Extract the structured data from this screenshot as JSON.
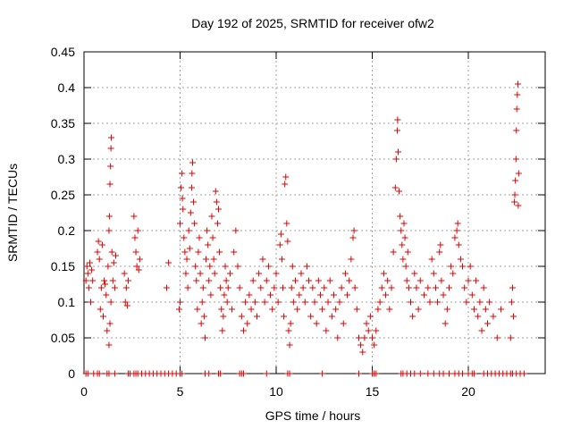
{
  "chart_data": {
    "type": "scatter",
    "title": "Day 192 of 2025, SRMTID for receiver ofw2",
    "xlabel": "GPS time / hours",
    "ylabel": "SRMTID / TECUs",
    "xlim": [
      0,
      24
    ],
    "ylim": [
      0,
      0.45
    ],
    "grid": true,
    "marker": "+",
    "color": "#e00000",
    "x_ticks": [
      "0",
      "5",
      "10",
      "15",
      "20"
    ],
    "y_ticks": [
      "0",
      "0.05",
      "0.1",
      "0.15",
      "0.2",
      "0.25",
      "0.3",
      "0.35",
      "0.4",
      "0.45"
    ],
    "series": [
      {
        "name": "SRMTID",
        "points": [
          [
            0.1,
            0.13
          ],
          [
            0.15,
            0.15
          ],
          [
            0.2,
            0.14
          ],
          [
            0.25,
            0.12
          ],
          [
            0.3,
            0.155
          ],
          [
            0.35,
            0.1
          ],
          [
            0.4,
            0.145
          ],
          [
            0.45,
            0.13
          ],
          [
            0.7,
            0.17
          ],
          [
            0.75,
            0.185
          ],
          [
            0.8,
            0.16
          ],
          [
            0.85,
            0.09
          ],
          [
            0.9,
            0.12
          ],
          [
            0.95,
            0.18
          ],
          [
            1.0,
            0.08
          ],
          [
            1.05,
            0.13
          ],
          [
            1.1,
            0.125
          ],
          [
            1.15,
            0.11
          ],
          [
            1.2,
            0.06
          ],
          [
            1.25,
            0.15
          ],
          [
            1.3,
            0.2
          ],
          [
            1.32,
            0.22
          ],
          [
            1.35,
            0.265
          ],
          [
            1.38,
            0.29
          ],
          [
            1.4,
            0.315
          ],
          [
            1.42,
            0.33
          ],
          [
            1.45,
            0.17
          ],
          [
            1.5,
            0.13
          ],
          [
            1.55,
            0.155
          ],
          [
            1.6,
            0.12
          ],
          [
            1.65,
            0.165
          ],
          [
            1.3,
            0.04
          ],
          [
            1.35,
            0.07
          ],
          [
            1.4,
            0.1
          ],
          [
            2.1,
            0.14
          ],
          [
            2.15,
            0.1
          ],
          [
            2.2,
            0.12
          ],
          [
            2.25,
            0.095
          ],
          [
            2.3,
            0.13
          ],
          [
            2.6,
            0.22
          ],
          [
            2.65,
            0.19
          ],
          [
            2.7,
            0.17
          ],
          [
            2.75,
            0.15
          ],
          [
            2.8,
            0.2
          ],
          [
            2.85,
            0.145
          ],
          [
            2.9,
            0.16
          ],
          [
            4.3,
            0.12
          ],
          [
            4.4,
            0.155
          ],
          [
            4.95,
            0.09
          ],
          [
            5.0,
            0.1
          ],
          [
            5.0,
            0.21
          ],
          [
            5.05,
            0.26
          ],
          [
            5.1,
            0.28
          ],
          [
            5.12,
            0.245
          ],
          [
            5.15,
            0.23
          ],
          [
            5.2,
            0.19
          ],
          [
            5.25,
            0.17
          ],
          [
            5.3,
            0.14
          ],
          [
            5.35,
            0.16
          ],
          [
            5.4,
            0.12
          ],
          [
            5.45,
            0.2
          ],
          [
            5.5,
            0.175
          ],
          [
            5.55,
            0.225
          ],
          [
            5.6,
            0.26
          ],
          [
            5.62,
            0.28
          ],
          [
            5.65,
            0.295
          ],
          [
            5.7,
            0.24
          ],
          [
            5.75,
            0.21
          ],
          [
            5.8,
            0.15
          ],
          [
            5.85,
            0.13
          ],
          [
            5.9,
            0.09
          ],
          [
            5.95,
            0.17
          ],
          [
            6.0,
            0.19
          ],
          [
            6.05,
            0.14
          ],
          [
            6.1,
            0.07
          ],
          [
            6.15,
            0.1
          ],
          [
            6.2,
            0.12
          ],
          [
            6.25,
            0.08
          ],
          [
            6.3,
            0.05
          ],
          [
            6.35,
            0.16
          ],
          [
            6.4,
            0.2
          ],
          [
            6.45,
            0.18
          ],
          [
            6.5,
            0.13
          ],
          [
            6.55,
            0.15
          ],
          [
            6.6,
            0.11
          ],
          [
            6.65,
            0.22
          ],
          [
            6.7,
            0.19
          ],
          [
            6.75,
            0.16
          ],
          [
            6.8,
            0.14
          ],
          [
            6.85,
            0.255
          ],
          [
            6.9,
            0.24
          ],
          [
            6.95,
            0.21
          ],
          [
            7.0,
            0.23
          ],
          [
            7.05,
            0.17
          ],
          [
            7.1,
            0.12
          ],
          [
            7.15,
            0.09
          ],
          [
            7.2,
            0.06
          ],
          [
            7.25,
            0.08
          ],
          [
            7.3,
            0.11
          ],
          [
            7.35,
            0.15
          ],
          [
            7.4,
            0.13
          ],
          [
            7.45,
            0.1
          ],
          [
            7.5,
            0.12
          ],
          [
            7.6,
            0.14
          ],
          [
            7.7,
            0.09
          ],
          [
            7.8,
            0.17
          ],
          [
            7.9,
            0.2
          ],
          [
            8.0,
            0.15
          ],
          [
            8.1,
            0.12
          ],
          [
            8.2,
            0.08
          ],
          [
            8.3,
            0.06
          ],
          [
            8.4,
            0.1
          ],
          [
            8.5,
            0.07
          ],
          [
            8.6,
            0.11
          ],
          [
            8.7,
            0.09
          ],
          [
            8.8,
            0.13
          ],
          [
            8.9,
            0.1
          ],
          [
            9.0,
            0.08
          ],
          [
            9.1,
            0.14
          ],
          [
            9.2,
            0.12
          ],
          [
            9.3,
            0.16
          ],
          [
            9.4,
            0.1
          ],
          [
            9.5,
            0.13
          ],
          [
            9.6,
            0.15
          ],
          [
            9.7,
            0.11
          ],
          [
            9.8,
            0.09
          ],
          [
            9.9,
            0.12
          ],
          [
            10.0,
            0.14
          ],
          [
            10.1,
            0.1
          ],
          [
            10.2,
            0.18
          ],
          [
            10.25,
            0.195
          ],
          [
            10.3,
            0.16
          ],
          [
            10.35,
            0.12
          ],
          [
            10.4,
            0.08
          ],
          [
            10.45,
            0.265
          ],
          [
            10.5,
            0.275
          ],
          [
            10.55,
            0.21
          ],
          [
            10.6,
            0.185
          ],
          [
            10.65,
            0.06
          ],
          [
            10.7,
            0.04
          ],
          [
            10.75,
            0.07
          ],
          [
            10.8,
            0.12
          ],
          [
            10.85,
            0.15
          ],
          [
            10.9,
            0.1
          ],
          [
            11.0,
            0.13
          ],
          [
            11.1,
            0.09
          ],
          [
            11.2,
            0.11
          ],
          [
            11.3,
            0.14
          ],
          [
            11.4,
            0.12
          ],
          [
            11.5,
            0.1
          ],
          [
            11.6,
            0.15
          ],
          [
            11.7,
            0.13
          ],
          [
            11.8,
            0.08
          ],
          [
            11.9,
            0.12
          ],
          [
            12.0,
            0.1
          ],
          [
            12.1,
            0.07
          ],
          [
            12.2,
            0.13
          ],
          [
            12.3,
            0.11
          ],
          [
            12.4,
            0.09
          ],
          [
            12.5,
            0.12
          ],
          [
            12.6,
            0.06
          ],
          [
            12.7,
            0.1
          ],
          [
            12.8,
            0.13
          ],
          [
            12.9,
            0.08
          ],
          [
            13.0,
            0.11
          ],
          [
            13.1,
            0.09
          ],
          [
            13.2,
            0.05
          ],
          [
            13.3,
            0.1
          ],
          [
            13.4,
            0.12
          ],
          [
            13.5,
            0.07
          ],
          [
            13.6,
            0.14
          ],
          [
            13.7,
            0.11
          ],
          [
            13.8,
            0.13
          ],
          [
            13.9,
            0.16
          ],
          [
            14.0,
            0.19
          ],
          [
            14.05,
            0.2
          ],
          [
            14.1,
            0.12
          ],
          [
            14.2,
            0.09
          ],
          [
            14.3,
            0.05
          ],
          [
            14.4,
            0.04
          ],
          [
            14.5,
            0.03
          ],
          [
            14.6,
            0.05
          ],
          [
            14.7,
            0.07
          ],
          [
            14.8,
            0.06
          ],
          [
            14.9,
            0.08
          ],
          [
            15.0,
            0.05
          ],
          [
            15.1,
            0.04
          ],
          [
            15.2,
            0.06
          ],
          [
            15.3,
            0.09
          ],
          [
            15.4,
            0.1
          ],
          [
            15.5,
            0.12
          ],
          [
            15.6,
            0.14
          ],
          [
            15.7,
            0.11
          ],
          [
            15.8,
            0.13
          ],
          [
            15.9,
            0.09
          ],
          [
            16.0,
            0.12
          ],
          [
            16.1,
            0.17
          ],
          [
            16.2,
            0.26
          ],
          [
            16.25,
            0.3
          ],
          [
            16.3,
            0.34
          ],
          [
            16.32,
            0.355
          ],
          [
            16.35,
            0.31
          ],
          [
            16.4,
            0.255
          ],
          [
            16.45,
            0.22
          ],
          [
            16.5,
            0.2
          ],
          [
            16.55,
            0.18
          ],
          [
            16.6,
            0.16
          ],
          [
            16.65,
            0.21
          ],
          [
            16.7,
            0.19
          ],
          [
            16.75,
            0.15
          ],
          [
            16.8,
            0.13
          ],
          [
            16.85,
            0.17
          ],
          [
            16.9,
            0.12
          ],
          [
            17.0,
            0.1
          ],
          [
            17.1,
            0.08
          ],
          [
            17.2,
            0.14
          ],
          [
            17.3,
            0.12
          ],
          [
            17.4,
            0.09
          ],
          [
            17.5,
            0.13
          ],
          [
            17.7,
            0.11
          ],
          [
            17.9,
            0.12
          ],
          [
            18.0,
            0.1
          ],
          [
            18.1,
            0.16
          ],
          [
            18.2,
            0.14
          ],
          [
            18.3,
            0.12
          ],
          [
            18.4,
            0.1
          ],
          [
            18.5,
            0.17
          ],
          [
            18.55,
            0.18
          ],
          [
            18.6,
            0.13
          ],
          [
            18.7,
            0.11
          ],
          [
            18.8,
            0.07
          ],
          [
            18.9,
            0.09
          ],
          [
            19.0,
            0.12
          ],
          [
            19.1,
            0.15
          ],
          [
            19.2,
            0.14
          ],
          [
            19.3,
            0.19
          ],
          [
            19.4,
            0.2
          ],
          [
            19.45,
            0.21
          ],
          [
            19.5,
            0.18
          ],
          [
            19.6,
            0.16
          ],
          [
            19.7,
            0.15
          ],
          [
            19.8,
            0.12
          ],
          [
            19.9,
            0.1
          ],
          [
            20.0,
            0.13
          ],
          [
            20.1,
            0.15
          ],
          [
            20.2,
            0.11
          ],
          [
            20.3,
            0.09
          ],
          [
            20.4,
            0.13
          ],
          [
            20.5,
            0.08
          ],
          [
            20.6,
            0.1
          ],
          [
            20.7,
            0.06
          ],
          [
            20.8,
            0.12
          ],
          [
            20.9,
            0.09
          ],
          [
            21.0,
            0.07
          ],
          [
            21.1,
            0.1
          ],
          [
            21.3,
            0.08
          ],
          [
            21.5,
            0.05
          ],
          [
            21.7,
            0.09
          ],
          [
            22.2,
            0.05
          ],
          [
            22.25,
            0.1
          ],
          [
            22.3,
            0.12
          ],
          [
            22.35,
            0.08
          ],
          [
            22.4,
            0.24
          ],
          [
            22.42,
            0.25
          ],
          [
            22.45,
            0.27
          ],
          [
            22.48,
            0.3
          ],
          [
            22.5,
            0.34
          ],
          [
            22.52,
            0.37
          ],
          [
            22.55,
            0.39
          ],
          [
            22.58,
            0.405
          ],
          [
            22.6,
            0.235
          ],
          [
            22.62,
            0.28
          ]
        ],
        "zero_points_x": [
          0.1,
          0.2,
          0.5,
          0.7,
          0.8,
          1.2,
          1.3,
          1.6,
          2.3,
          2.4,
          2.6,
          2.7,
          2.8,
          3.0,
          3.2,
          3.4,
          3.6,
          3.8,
          4.0,
          4.2,
          4.4,
          4.6,
          4.8,
          5.0,
          5.1,
          6.3,
          6.5,
          7.0,
          7.1,
          8.1,
          8.2,
          8.3,
          9.5,
          10.6,
          10.7,
          12.4,
          14.3,
          15.0,
          15.1,
          15.2,
          16.5,
          16.6,
          16.8,
          17.0,
          17.2,
          17.5,
          17.9,
          18.2,
          18.5,
          18.7,
          19.0,
          19.3,
          19.5,
          19.7,
          20.0,
          20.2,
          20.3,
          20.8,
          21.0,
          21.2,
          21.4,
          21.6,
          21.8,
          22.0,
          22.2,
          22.3,
          22.5,
          22.7,
          22.9
        ]
      }
    ]
  }
}
